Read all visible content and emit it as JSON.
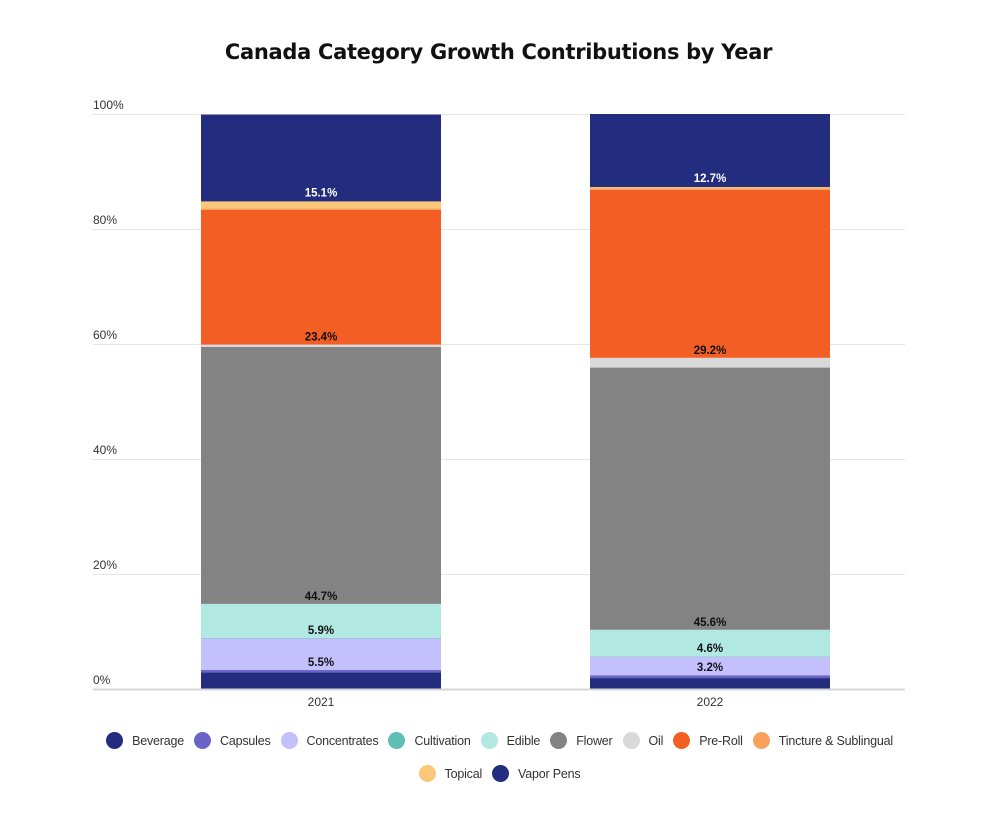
{
  "chart_data": {
    "type": "bar",
    "stacked": true,
    "normalized": true,
    "title": "Canada Category Growth Contributions by Year",
    "xlabel": "",
    "ylabel": "",
    "ylim": [
      0,
      100
    ],
    "y_ticks": [
      "0%",
      "20%",
      "40%",
      "60%",
      "80%",
      "100%"
    ],
    "y_tick_values": [
      0,
      20,
      40,
      60,
      80,
      100
    ],
    "grid": true,
    "legend_position": "bottom",
    "categories": [
      "2021",
      "2022"
    ],
    "series": [
      {
        "name": "Beverage",
        "color": "#232d7f",
        "values": [
          2.9,
          1.9
        ],
        "labels": [
          "",
          ""
        ],
        "label_color": "#111111"
      },
      {
        "name": "Capsules",
        "color": "#6b63c7",
        "values": [
          0.4,
          0.5
        ],
        "labels": [
          "",
          ""
        ],
        "label_color": "#111111"
      },
      {
        "name": "Concentrates",
        "color": "#c3c0fd",
        "values": [
          5.5,
          3.2
        ],
        "labels": [
          "5.5%",
          "3.2%"
        ],
        "label_color": "#111111"
      },
      {
        "name": "Cultivation",
        "color": "#5fbfb6",
        "values": [
          0.1,
          0.1
        ],
        "labels": [
          "",
          ""
        ],
        "label_color": "#111111"
      },
      {
        "name": "Edible",
        "color": "#b2e8e2",
        "values": [
          5.9,
          4.6
        ],
        "labels": [
          "5.9%",
          "4.6%"
        ],
        "label_color": "#111111"
      },
      {
        "name": "Flower",
        "color": "#838383",
        "values": [
          44.7,
          45.6
        ],
        "labels": [
          "44.7%",
          "45.6%"
        ],
        "label_color": "#111111"
      },
      {
        "name": "Oil",
        "color": "#d9d9d9",
        "values": [
          0.4,
          1.7
        ],
        "labels": [
          "",
          ""
        ],
        "label_color": "#111111"
      },
      {
        "name": "Pre-Roll",
        "color": "#f25e23",
        "values": [
          23.4,
          29.2
        ],
        "labels": [
          "23.4%",
          "29.2%"
        ],
        "label_color": "#111111"
      },
      {
        "name": "Tincture & Sublingual",
        "color": "#f7a15d",
        "values": [
          0.3,
          0.3
        ],
        "labels": [
          "",
          ""
        ],
        "label_color": "#111111"
      },
      {
        "name": "Topical",
        "color": "#fdc77a",
        "values": [
          1.2,
          0.2
        ],
        "labels": [
          "",
          ""
        ],
        "label_color": "#111111"
      },
      {
        "name": "Vapor Pens",
        "color": "#232d7f",
        "values": [
          15.1,
          12.7
        ],
        "labels": [
          "15.1%",
          "12.7%"
        ],
        "label_color": "#ffffff"
      }
    ]
  },
  "colors": {
    "gridline": "#e4e4e4",
    "axis": "#d6d6d6"
  }
}
